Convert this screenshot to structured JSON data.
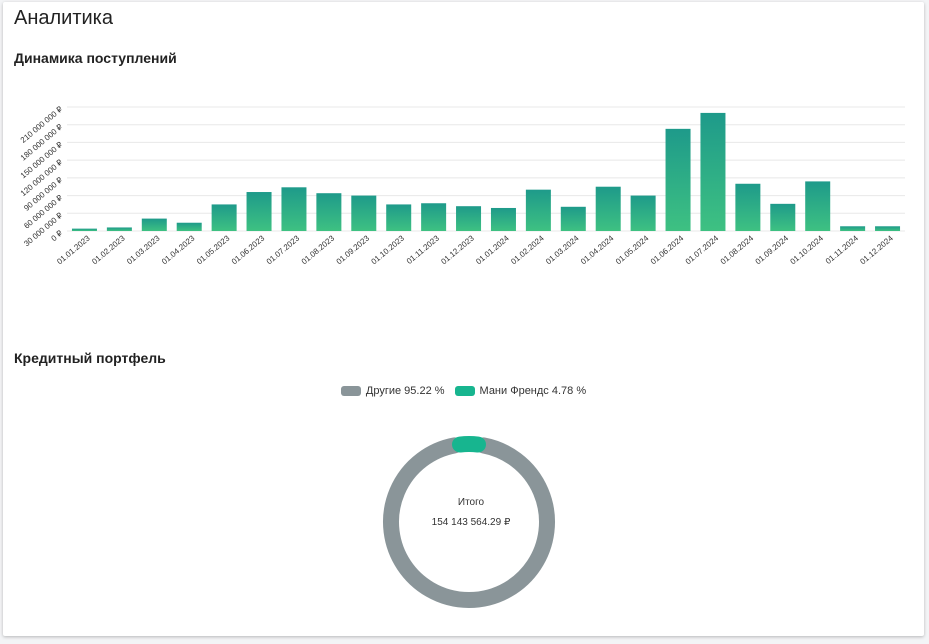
{
  "page": {
    "title": "Аналитика"
  },
  "income_section": {
    "title": "Динамика поступлений"
  },
  "portfolio_section": {
    "title": "Кредитный портфель",
    "total_label": "Итого",
    "total_value": "154 143 564.29 ₽"
  },
  "colors": {
    "bar_top": "#1e9a8a",
    "bar_bottom": "#3ec182",
    "donut_other": "#8a9599",
    "donut_money": "#17b58f",
    "grid": "#e8e8e8"
  },
  "chart_data": [
    {
      "type": "bar",
      "title": "Динамика поступлений",
      "xlabel": "",
      "ylabel": "",
      "ylim": [
        0,
        210000000
      ],
      "yticks": [
        0,
        30000000,
        60000000,
        90000000,
        120000000,
        150000000,
        180000000,
        210000000
      ],
      "ytick_labels": [
        "0 ₽",
        "30 000 000 ₽",
        "60 000 000 ₽",
        "90 000 000 ₽",
        "120 000 000 ₽",
        "150 000 000 ₽",
        "180 000 000 ₽",
        "210 000 000 ₽"
      ],
      "categories": [
        "01.01.2023",
        "01.02.2023",
        "01.03.2023",
        "01.04.2023",
        "01.05.2023",
        "01.06.2023",
        "01.07.2023",
        "01.08.2023",
        "01.09.2023",
        "01.10.2023",
        "01.11.2023",
        "01.12.2023",
        "01.01.2024",
        "01.02.2024",
        "01.03.2024",
        "01.04.2024",
        "01.05.2024",
        "01.06.2024",
        "01.07.2024",
        "01.08.2024",
        "01.09.2024",
        "01.10.2024",
        "01.11.2024",
        "01.12.2024"
      ],
      "values": [
        4000000,
        6000000,
        21000000,
        14000000,
        45000000,
        66000000,
        74000000,
        64000000,
        60000000,
        45000000,
        47000000,
        42000000,
        39000000,
        70000000,
        41000000,
        75000000,
        60000000,
        173000000,
        200000000,
        80000000,
        46000000,
        84000000,
        8000000,
        8000000
      ]
    },
    {
      "type": "pie",
      "title": "Кредитный портфель",
      "labels": [
        "Другие",
        "Мани Френдс"
      ],
      "values": [
        95.22,
        4.78
      ],
      "legend_labels": [
        "Другие 95.22 %",
        "Мани Френдс 4.78 %"
      ],
      "legend_position": "top"
    }
  ]
}
